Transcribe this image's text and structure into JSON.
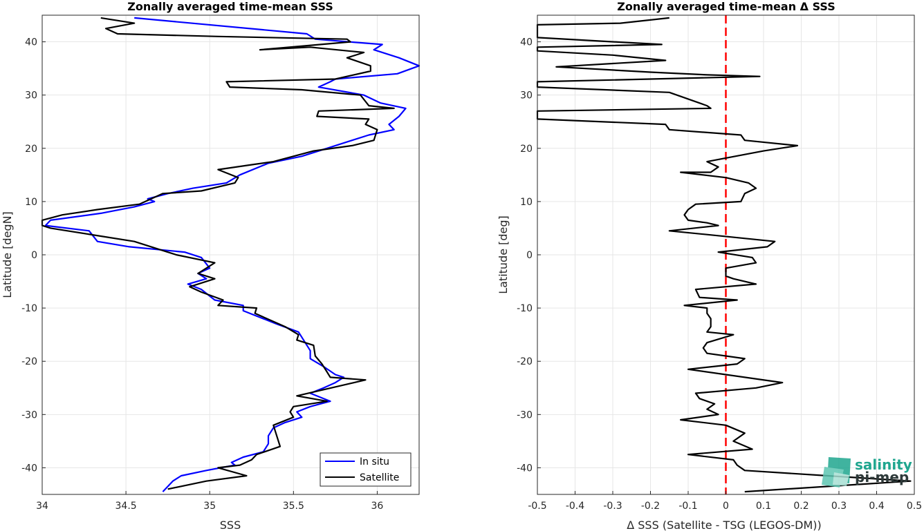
{
  "chart_data": [
    {
      "type": "line",
      "title": "Zonally averaged time-mean SSS",
      "xlabel": "SSS",
      "ylabel": "Latitude [degN]",
      "xlim": [
        34,
        36.25
      ],
      "ylim": [
        -45,
        45
      ],
      "xticks": [
        34,
        34.5,
        35,
        35.5,
        36
      ],
      "xtick_labels": [
        "34",
        "34.5",
        "35",
        "35.5",
        "36"
      ],
      "yticks": [
        -40,
        -30,
        -20,
        -10,
        0,
        10,
        20,
        30,
        40
      ],
      "ytick_labels": [
        "-40",
        "-30",
        "-20",
        "-10",
        "0",
        "10",
        "20",
        "30",
        "40"
      ],
      "grid": true,
      "legend_position": "bottom-right",
      "series": [
        {
          "name": "In situ",
          "color": "#0000ff",
          "points": [
            [
              34.55,
              44.5
            ],
            [
              35.58,
              41.5
            ],
            [
              35.63,
              40.5
            ],
            [
              36.03,
              39.5
            ],
            [
              35.98,
              38.5
            ],
            [
              36.13,
              37
            ],
            [
              36.25,
              35.5
            ],
            [
              36.12,
              34
            ],
            [
              35.75,
              33
            ],
            [
              35.72,
              32.5
            ],
            [
              35.65,
              31.5
            ],
            [
              35.92,
              30
            ],
            [
              36.02,
              28.5
            ],
            [
              36.17,
              27.5
            ],
            [
              36.13,
              26
            ],
            [
              36.07,
              24.5
            ],
            [
              36.1,
              23.5
            ],
            [
              35.95,
              22.5
            ],
            [
              35.85,
              21.5
            ],
            [
              35.7,
              20
            ],
            [
              35.55,
              18.5
            ],
            [
              35.35,
              17.2
            ],
            [
              35.18,
              15
            ],
            [
              35.1,
              13.5
            ],
            [
              34.9,
              12.5
            ],
            [
              34.75,
              11.5
            ],
            [
              34.63,
              10.5
            ],
            [
              34.67,
              10
            ],
            [
              34.55,
              9
            ],
            [
              34.35,
              7.8
            ],
            [
              34.05,
              6.5
            ],
            [
              34.02,
              5.5
            ],
            [
              34.28,
              4.5
            ],
            [
              34.33,
              2.5
            ],
            [
              34.52,
              1.5
            ],
            [
              34.85,
              0.5
            ],
            [
              34.95,
              -0.5
            ],
            [
              35.0,
              -2.5
            ],
            [
              34.93,
              -3.5
            ],
            [
              34.98,
              -4.5
            ],
            [
              34.87,
              -5.5
            ],
            [
              34.95,
              -6.5
            ],
            [
              35.03,
              -8.5
            ],
            [
              35.2,
              -9.5
            ],
            [
              35.2,
              -10.5
            ],
            [
              35.4,
              -13
            ],
            [
              35.53,
              -14.5
            ],
            [
              35.57,
              -16.5
            ],
            [
              35.6,
              -18
            ],
            [
              35.6,
              -19.5
            ],
            [
              35.68,
              -21
            ],
            [
              35.75,
              -22.5
            ],
            [
              35.8,
              -23
            ],
            [
              35.75,
              -24
            ],
            [
              35.68,
              -25
            ],
            [
              35.6,
              -26
            ],
            [
              35.72,
              -27.5
            ],
            [
              35.6,
              -28.5
            ],
            [
              35.52,
              -29.5
            ],
            [
              35.55,
              -30.5
            ],
            [
              35.45,
              -31.5
            ],
            [
              35.38,
              -32.5
            ],
            [
              35.35,
              -34
            ],
            [
              35.35,
              -35.5
            ],
            [
              35.32,
              -37
            ],
            [
              35.2,
              -38
            ],
            [
              35.13,
              -39
            ],
            [
              35.15,
              -39.5
            ],
            [
              34.98,
              -40.5
            ],
            [
              34.83,
              -41.5
            ],
            [
              34.78,
              -42.5
            ],
            [
              34.72,
              -44.5
            ]
          ]
        },
        {
          "name": "Satellite",
          "color": "#000000",
          "points": [
            [
              34.35,
              44.5
            ],
            [
              34.55,
              43.5
            ],
            [
              34.38,
              42.5
            ],
            [
              34.45,
              41.5
            ],
            [
              35.05,
              41
            ],
            [
              35.82,
              40.5
            ],
            [
              35.84,
              40
            ],
            [
              35.3,
              38.5
            ],
            [
              35.6,
              39
            ],
            [
              35.92,
              38
            ],
            [
              35.82,
              37
            ],
            [
              35.96,
              35.5
            ],
            [
              35.96,
              34.5
            ],
            [
              35.75,
              33
            ],
            [
              35.1,
              32.5
            ],
            [
              35.12,
              31.5
            ],
            [
              35.55,
              31
            ],
            [
              35.9,
              30
            ],
            [
              35.95,
              28
            ],
            [
              36.1,
              27.5
            ],
            [
              35.65,
              27
            ],
            [
              35.64,
              26
            ],
            [
              35.95,
              25.5
            ],
            [
              35.93,
              24.5
            ],
            [
              36.0,
              23.5
            ],
            [
              35.98,
              21.5
            ],
            [
              35.85,
              20.5
            ],
            [
              35.62,
              19.5
            ],
            [
              35.38,
              17.5
            ],
            [
              35.27,
              17
            ],
            [
              35.05,
              16
            ],
            [
              35.17,
              14.5
            ],
            [
              35.15,
              13.5
            ],
            [
              34.95,
              12
            ],
            [
              34.72,
              11.5
            ],
            [
              34.65,
              10.5
            ],
            [
              34.58,
              9.5
            ],
            [
              34.33,
              8.5
            ],
            [
              34.12,
              7.5
            ],
            [
              34.0,
              6.5
            ],
            [
              34.0,
              5.5
            ],
            [
              34.05,
              5
            ],
            [
              34.35,
              3.5
            ],
            [
              34.55,
              2.5
            ],
            [
              34.7,
              1
            ],
            [
              34.8,
              0
            ],
            [
              35.03,
              -1.5
            ],
            [
              34.93,
              -3.5
            ],
            [
              35.03,
              -4.5
            ],
            [
              34.88,
              -6
            ],
            [
              34.95,
              -7
            ],
            [
              35.08,
              -8.5
            ],
            [
              35.05,
              -9.5
            ],
            [
              35.28,
              -10
            ],
            [
              35.27,
              -11
            ],
            [
              35.45,
              -13.5
            ],
            [
              35.53,
              -15
            ],
            [
              35.52,
              -16
            ],
            [
              35.62,
              -17
            ],
            [
              35.63,
              -19
            ],
            [
              35.67,
              -20.5
            ],
            [
              35.7,
              -22
            ],
            [
              35.72,
              -23
            ],
            [
              35.93,
              -23.5
            ],
            [
              35.52,
              -26.5
            ],
            [
              35.7,
              -27.5
            ],
            [
              35.5,
              -28.5
            ],
            [
              35.48,
              -29.5
            ],
            [
              35.5,
              -30.5
            ],
            [
              35.38,
              -32
            ],
            [
              35.42,
              -36
            ],
            [
              35.28,
              -37.5
            ],
            [
              35.25,
              -38.5
            ],
            [
              35.18,
              -39.5
            ],
            [
              35.05,
              -40
            ],
            [
              35.22,
              -41.5
            ],
            [
              34.98,
              -42.5
            ],
            [
              34.75,
              -44
            ]
          ]
        }
      ]
    },
    {
      "type": "line",
      "title": "Zonally averaged time-mean Δ SSS",
      "xlabel": "Δ SSS (Satellite - TSG (LEGOS-DM))",
      "ylabel": "Latitude [deg]",
      "xlim": [
        -0.5,
        0.5
      ],
      "ylim": [
        -45,
        45
      ],
      "xticks": [
        -0.5,
        -0.4,
        -0.3,
        -0.2,
        -0.1,
        0,
        0.1,
        0.2,
        0.3,
        0.4,
        0.5
      ],
      "xtick_labels": [
        "-0.5",
        "-0.4",
        "-0.3",
        "-0.2",
        "-0.1",
        "0",
        "0.1",
        "0.2",
        "0.3",
        "0.4",
        "0.5"
      ],
      "yticks": [
        -40,
        -30,
        -20,
        -10,
        0,
        10,
        20,
        30,
        40
      ],
      "ytick_labels": [
        "-40",
        "-30",
        "-20",
        "-10",
        "0",
        "10",
        "20",
        "30",
        "40"
      ],
      "grid": true,
      "reference_line": {
        "x": 0,
        "color": "#ff0000",
        "style": "dashed"
      },
      "series": [
        {
          "name": "",
          "color": "#000000",
          "points": [
            [
              -0.15,
              44.5
            ],
            [
              -0.28,
              43.5
            ],
            [
              -0.5,
              43.2
            ],
            [
              -0.5,
              40.8
            ],
            [
              -0.35,
              40.2
            ],
            [
              -0.17,
              39.5
            ],
            [
              -0.5,
              39
            ],
            [
              -0.5,
              38.3
            ],
            [
              -0.3,
              37.5
            ],
            [
              -0.16,
              36.5
            ],
            [
              -0.45,
              35.3
            ],
            [
              -0.2,
              34.3
            ],
            [
              -0.05,
              33.8
            ],
            [
              0.09,
              33.5
            ],
            [
              -0.5,
              32.5
            ],
            [
              -0.5,
              31.5
            ],
            [
              -0.15,
              30.5
            ],
            [
              -0.05,
              28
            ],
            [
              -0.04,
              27.5
            ],
            [
              -0.5,
              27
            ],
            [
              -0.5,
              25.5
            ],
            [
              -0.16,
              24.5
            ],
            [
              -0.15,
              23.5
            ],
            [
              0.04,
              22.5
            ],
            [
              0.05,
              21.5
            ],
            [
              0.19,
              20.5
            ],
            [
              0.1,
              19.5
            ],
            [
              -0.05,
              17.5
            ],
            [
              -0.02,
              16.5
            ],
            [
              -0.04,
              15.5
            ],
            [
              -0.12,
              15.5
            ],
            [
              0.0,
              14.5
            ],
            [
              0.06,
              13.5
            ],
            [
              0.08,
              12.5
            ],
            [
              0.05,
              11.5
            ],
            [
              0.04,
              10
            ],
            [
              -0.08,
              9.5
            ],
            [
              -0.1,
              8.5
            ],
            [
              -0.11,
              7.5
            ],
            [
              -0.1,
              6.5
            ],
            [
              -0.05,
              6
            ],
            [
              -0.02,
              5.5
            ],
            [
              -0.15,
              4.5
            ],
            [
              -0.05,
              3.8
            ],
            [
              0.13,
              2.5
            ],
            [
              0.11,
              1.5
            ],
            [
              -0.02,
              0.5
            ],
            [
              0.07,
              -0.5
            ],
            [
              0.08,
              -1.5
            ],
            [
              0.0,
              -2.5
            ],
            [
              0.0,
              -4
            ],
            [
              0.02,
              -4.5
            ],
            [
              0.08,
              -5.5
            ],
            [
              -0.08,
              -6.5
            ],
            [
              -0.07,
              -8
            ],
            [
              0.03,
              -8.5
            ],
            [
              -0.11,
              -9.5
            ],
            [
              -0.05,
              -10
            ],
            [
              -0.05,
              -11
            ],
            [
              -0.04,
              -12
            ],
            [
              -0.04,
              -13.5
            ],
            [
              -0.05,
              -14.5
            ],
            [
              0.02,
              -15
            ],
            [
              -0.05,
              -16.5
            ],
            [
              -0.06,
              -17.5
            ],
            [
              -0.05,
              -18.5
            ],
            [
              0.05,
              -19.5
            ],
            [
              0.03,
              -20.5
            ],
            [
              -0.1,
              -21.5
            ],
            [
              0.15,
              -24
            ],
            [
              0.08,
              -25
            ],
            [
              -0.08,
              -26
            ],
            [
              -0.07,
              -27
            ],
            [
              -0.03,
              -28
            ],
            [
              -0.05,
              -29
            ],
            [
              -0.02,
              -30
            ],
            [
              -0.12,
              -31
            ],
            [
              0.0,
              -32
            ],
            [
              0.05,
              -33.5
            ],
            [
              0.02,
              -35
            ],
            [
              0.07,
              -36.5
            ],
            [
              -0.1,
              -37.5
            ],
            [
              0.02,
              -38.5
            ],
            [
              0.03,
              -39.5
            ],
            [
              0.05,
              -40.5
            ],
            [
              0.27,
              -41.5
            ],
            [
              0.49,
              -42.5
            ],
            [
              0.05,
              -44.5
            ]
          ]
        }
      ]
    }
  ],
  "legend": {
    "items": [
      "In situ",
      "Satellite"
    ]
  },
  "logo": {
    "line1": "salinity",
    "line2": "pi-mep"
  },
  "colors": {
    "in_situ": "#0000ff",
    "satellite": "#000000",
    "zero_line": "#ff0000",
    "grid": "#e6e6e6",
    "logo_teal": "#1fa68f"
  }
}
